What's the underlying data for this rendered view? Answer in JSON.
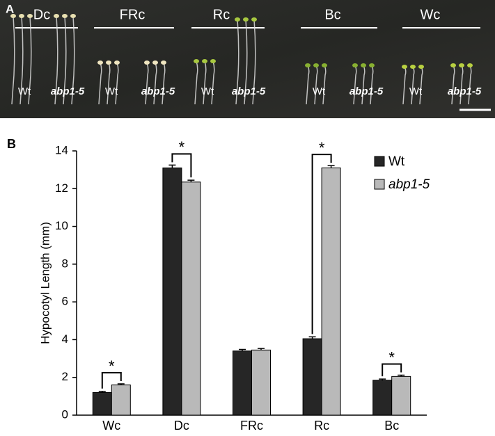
{
  "panel_a": {
    "label": "A",
    "conditions": [
      {
        "name": "Dc",
        "genotypes": [
          "Wt",
          "abp1-5"
        ]
      },
      {
        "name": "FRc",
        "genotypes": [
          "Wt",
          "abp1-5"
        ]
      },
      {
        "name": "Rc",
        "genotypes": [
          "Wt",
          "abp1-5"
        ]
      },
      {
        "name": "Bc",
        "genotypes": [
          "Wt",
          "abp1-5"
        ]
      },
      {
        "name": "Wc",
        "genotypes": [
          "Wt",
          "abp1-5"
        ]
      }
    ]
  },
  "chart_data": {
    "type": "bar",
    "label": "B",
    "ylabel": "Hypocotyl Length (mm)",
    "categories": [
      "Wc",
      "Dc",
      "FRc",
      "Rc",
      "Bc"
    ],
    "series": [
      {
        "name": "Wt",
        "color": "#262626",
        "values": [
          1.2,
          13.1,
          3.4,
          4.05,
          1.85
        ],
        "errors": [
          0.06,
          0.15,
          0.08,
          0.1,
          0.06
        ]
      },
      {
        "name": "abp1-5",
        "color": "#b9b9b9",
        "values": [
          1.6,
          12.35,
          3.45,
          13.1,
          2.05
        ],
        "errors": [
          0.06,
          0.1,
          0.08,
          0.12,
          0.07
        ]
      }
    ],
    "ylim": [
      0,
      14
    ],
    "yticks": [
      0,
      2,
      4,
      6,
      8,
      10,
      12,
      14
    ],
    "grid": false,
    "legend": "upper right",
    "significance": [
      {
        "category": "Wc",
        "text": "*"
      },
      {
        "category": "Dc",
        "text": "*"
      },
      {
        "category": "Rc",
        "text": "*"
      },
      {
        "category": "Bc",
        "text": "*"
      }
    ]
  }
}
